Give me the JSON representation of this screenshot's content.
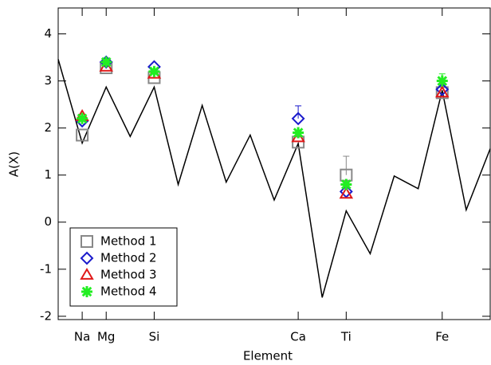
{
  "chart_data": {
    "type": "scatter",
    "x_label": "Element",
    "y_label": "A(X)",
    "xlim": [
      10,
      28
    ],
    "ylim": [
      -2.07,
      4.55
    ],
    "xticks": [
      {
        "value": 11,
        "label": "Na"
      },
      {
        "value": 12,
        "label": "Mg"
      },
      {
        "value": 14,
        "label": "Si"
      },
      {
        "value": 20,
        "label": "Ca"
      },
      {
        "value": 22,
        "label": "Ti"
      },
      {
        "value": 26,
        "label": "Fe"
      }
    ],
    "yticks": [
      -2,
      -1,
      0,
      1,
      2,
      3,
      4
    ],
    "legend_position": "lower left",
    "series": [
      {
        "marker": "line",
        "color": "#000000",
        "x": [
          10,
          11,
          12,
          13,
          14,
          15,
          16,
          17,
          18,
          19,
          20,
          21,
          22,
          23,
          24,
          25,
          26,
          27,
          28
        ],
        "values": [
          3.46,
          1.68,
          2.87,
          1.82,
          2.87,
          0.8,
          2.48,
          0.85,
          1.85,
          0.47,
          1.67,
          -1.6,
          0.24,
          -0.67,
          0.98,
          0.71,
          2.8,
          0.26,
          1.56
        ]
      },
      {
        "name": "Method 1",
        "marker": "square",
        "color": "#888888",
        "x": [
          11,
          12,
          14,
          20,
          22,
          26
        ],
        "values": [
          1.85,
          3.28,
          3.07,
          1.7,
          1.0,
          2.75
        ],
        "errors": [
          null,
          null,
          null,
          null,
          0.4,
          null
        ]
      },
      {
        "name": "Method 2",
        "marker": "diamond",
        "color": "#1a1acc",
        "x": [
          11,
          12,
          14,
          20,
          22,
          26
        ],
        "values": [
          2.15,
          3.4,
          3.3,
          2.2,
          0.65,
          2.82
        ],
        "errors": [
          null,
          null,
          null,
          0.27,
          null,
          null
        ]
      },
      {
        "name": "Method 3",
        "marker": "triangle",
        "color": "#e01818",
        "x": [
          11,
          12,
          14,
          20,
          22,
          26
        ],
        "values": [
          2.25,
          3.3,
          3.15,
          1.8,
          0.6,
          2.75
        ]
      },
      {
        "name": "Method 4",
        "marker": "star",
        "color": "#22ee22",
        "x": [
          11,
          12,
          14,
          20,
          22,
          26
        ],
        "values": [
          2.2,
          3.4,
          3.2,
          1.9,
          0.8,
          3.0
        ],
        "errors": [
          null,
          null,
          null,
          null,
          null,
          0.15
        ]
      }
    ]
  }
}
